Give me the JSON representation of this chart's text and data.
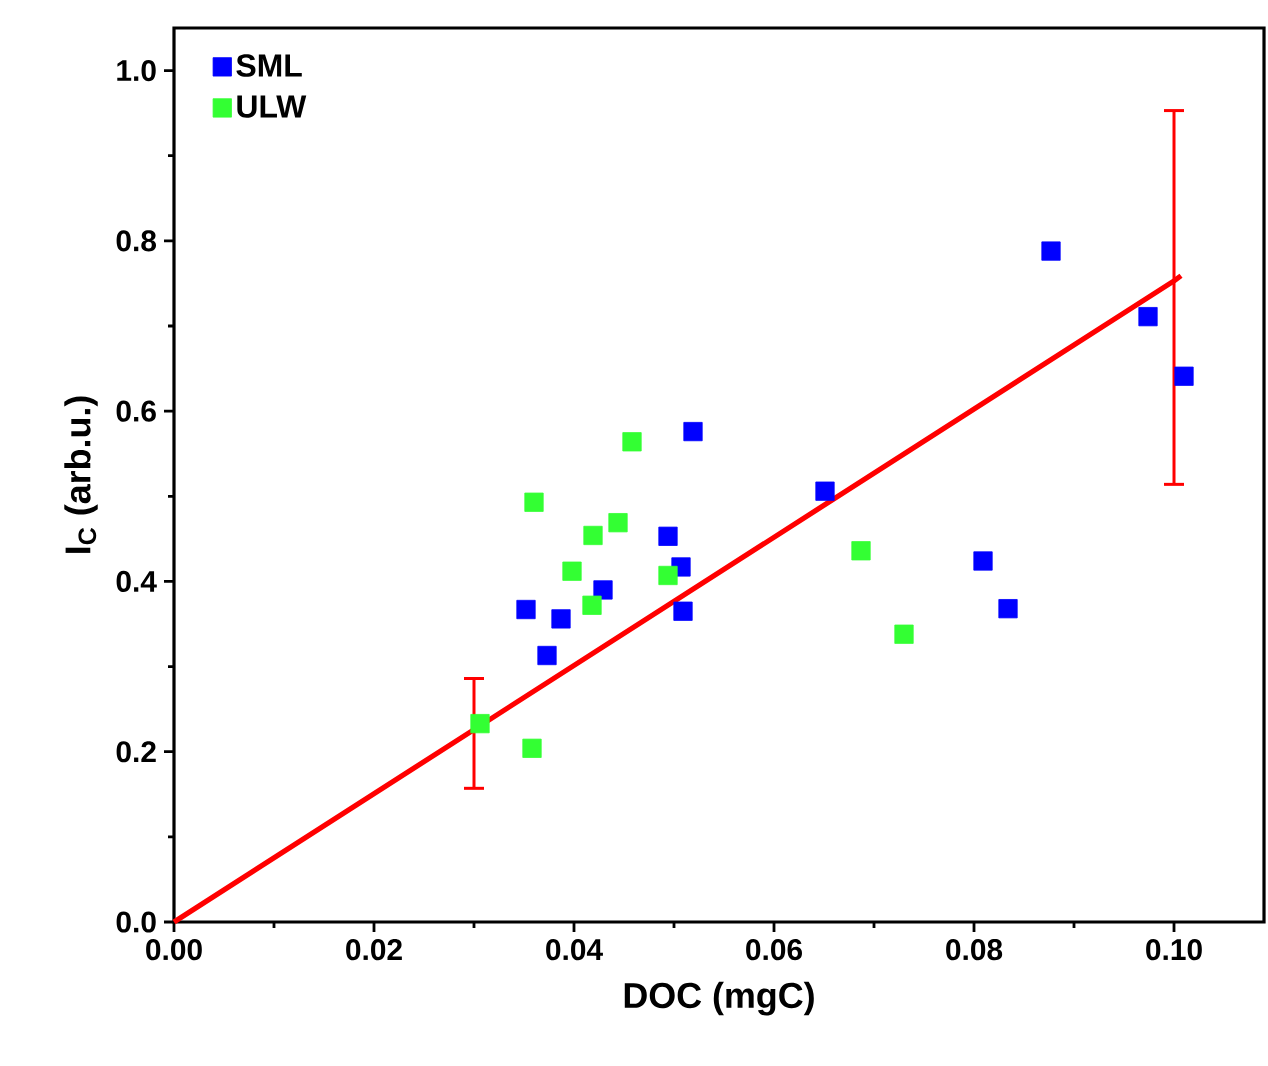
{
  "chart_data": {
    "type": "scatter",
    "xlabel": "DOC (mgC)",
    "ylabel": "I$_{C}$ (arb.u.)",
    "xlim": [
      0,
      0.109
    ],
    "ylim": [
      0,
      1.05
    ],
    "xticks": [
      {
        "value": 0,
        "label": "0.00"
      },
      {
        "value": 0.02,
        "label": "0.02"
      },
      {
        "value": 0.04,
        "label": "0.04"
      },
      {
        "value": 0.06,
        "label": "0.06"
      },
      {
        "value": 0.08,
        "label": "0.08"
      },
      {
        "value": 0.1,
        "label": "0.10"
      }
    ],
    "yticks": [
      {
        "value": 0,
        "label": "0.0"
      },
      {
        "value": 0.2,
        "label": "0.2"
      },
      {
        "value": 0.4,
        "label": "0.4"
      },
      {
        "value": 0.6,
        "label": "0.6"
      },
      {
        "value": 0.8,
        "label": "0.8"
      },
      {
        "value": 1.0,
        "label": "1.0"
      }
    ],
    "legend": "top left",
    "marker": "square",
    "grid": false,
    "series": [
      {
        "name": "SML",
        "color": "#0000ff",
        "x": [
          0.0519,
          0.0651,
          0.0494,
          0.0507,
          0.0429,
          0.0352,
          0.0387,
          0.0509,
          0.0373,
          0.0877,
          0.0974,
          0.101,
          0.0809,
          0.0834
        ],
        "values": [
          0.576,
          0.506,
          0.453,
          0.417,
          0.39,
          0.367,
          0.356,
          0.365,
          0.313,
          0.788,
          0.711,
          0.641,
          0.424,
          0.368
        ]
      },
      {
        "name": "ULW",
        "color": "#33ff33",
        "x": [
          0.0458,
          0.036,
          0.0444,
          0.0419,
          0.0398,
          0.0494,
          0.0418,
          0.0687,
          0.0306,
          0.0358,
          0.073
        ],
        "values": [
          0.564,
          0.493,
          0.469,
          0.454,
          0.412,
          0.407,
          0.372,
          0.436,
          0.233,
          0.204,
          0.338
        ]
      },
      {
        "type": "line",
        "marker": "none",
        "color": "#ff0000",
        "x": [
          0,
          0.03,
          0.1,
          0.1007
        ],
        "values": [
          0,
          0.226,
          0.753,
          0.759
        ],
        "errors": [
          null,
          [
            0.157,
            0.286
          ],
          [
            0.514,
            0.953
          ],
          null
        ]
      }
    ]
  }
}
